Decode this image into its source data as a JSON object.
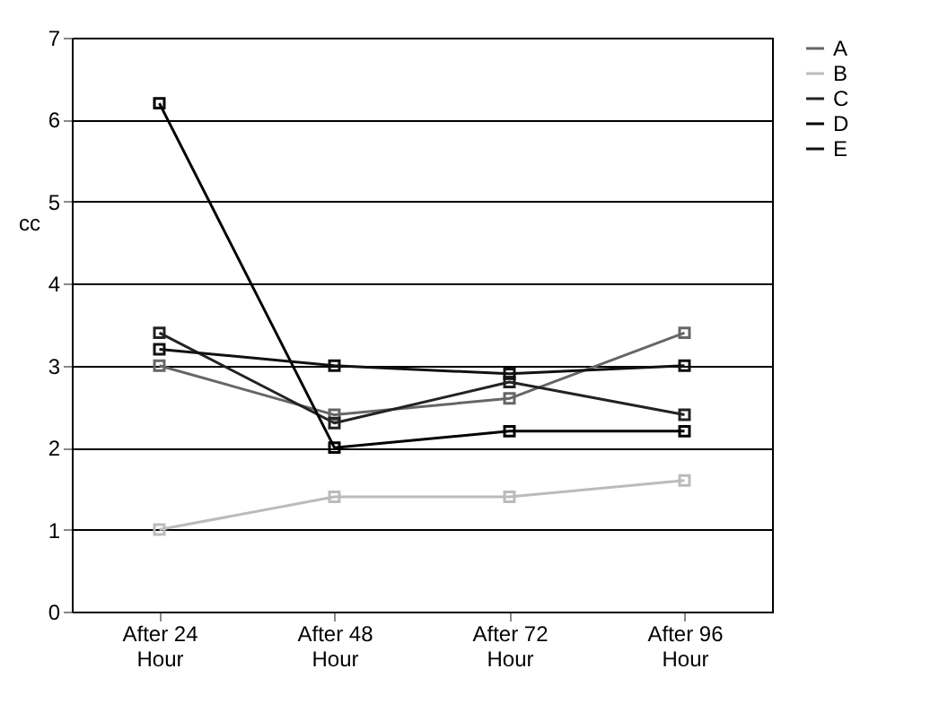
{
  "chart_data": {
    "type": "line",
    "ylabel": "cc",
    "categories": [
      "After 24\nHour",
      "After 48\nHour",
      "After 72\nHour",
      "After 96\nHour"
    ],
    "series": [
      {
        "name": "A",
        "color": "#666666",
        "values": [
          3.0,
          2.4,
          2.6,
          3.4
        ]
      },
      {
        "name": "B",
        "color": "#bbbbbb",
        "values": [
          1.0,
          1.4,
          1.4,
          1.6
        ]
      },
      {
        "name": "C",
        "color": "#222222",
        "values": [
          3.4,
          2.3,
          2.8,
          2.4
        ]
      },
      {
        "name": "D",
        "color": "#000000",
        "values": [
          6.2,
          2.0,
          2.2,
          2.2
        ]
      },
      {
        "name": "E",
        "color": "#111111",
        "values": [
          3.2,
          3.0,
          2.9,
          3.0
        ]
      }
    ],
    "ylim": [
      0,
      7
    ],
    "yticks": [
      0,
      1,
      2,
      3,
      4,
      5,
      6,
      7
    ],
    "grid": "y",
    "legend": "right",
    "marker": "square",
    "line_style": "solid"
  }
}
